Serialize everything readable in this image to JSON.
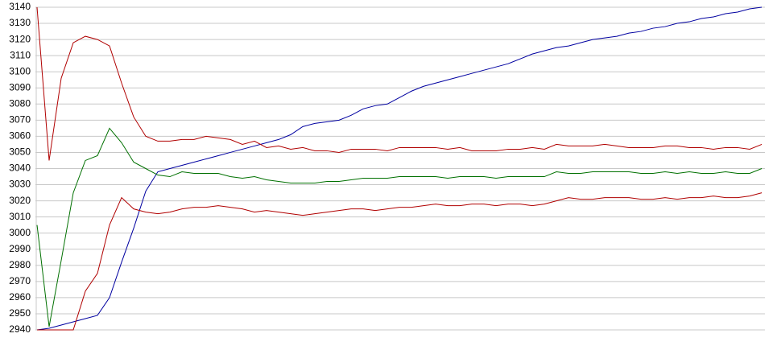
{
  "chart_data": {
    "type": "line",
    "ylim": [
      2940,
      3140
    ],
    "yticks": [
      2940,
      2950,
      2960,
      2970,
      2980,
      2990,
      3000,
      3010,
      3020,
      3030,
      3040,
      3050,
      3060,
      3070,
      3080,
      3090,
      3100,
      3110,
      3120,
      3130,
      3140
    ],
    "grid": true,
    "series": [
      {
        "color": "#0000a0",
        "values": [
          2940,
          2941,
          2943,
          2945,
          2947,
          2949,
          2960,
          2982,
          3003,
          3026,
          3038,
          3040,
          3042,
          3044,
          3046,
          3048,
          3050,
          3052,
          3054,
          3056,
          3058,
          3061,
          3066,
          3068,
          3069,
          3070,
          3073,
          3077,
          3079,
          3080,
          3084,
          3088,
          3091,
          3093,
          3095,
          3097,
          3099,
          3101,
          3103,
          3105,
          3108,
          3111,
          3113,
          3115,
          3116,
          3118,
          3120,
          3121,
          3122,
          3124,
          3125,
          3127,
          3128,
          3130,
          3131,
          3133,
          3134,
          3136,
          3137,
          3139,
          3140
        ]
      },
      {
        "color": "#b00000",
        "values": [
          3140,
          3045,
          3096,
          3118,
          3122,
          3120,
          3116,
          3093,
          3072,
          3060,
          3057,
          3057,
          3058,
          3058,
          3060,
          3059,
          3058,
          3055,
          3057,
          3053,
          3054,
          3052,
          3053,
          3051,
          3051,
          3050,
          3052,
          3052,
          3052,
          3051,
          3053,
          3053,
          3053,
          3053,
          3052,
          3053,
          3051,
          3051,
          3051,
          3052,
          3052,
          3053,
          3052,
          3055,
          3054,
          3054,
          3054,
          3055,
          3054,
          3053,
          3053,
          3053,
          3054,
          3054,
          3053,
          3053,
          3052,
          3053,
          3053,
          3052,
          3055
        ]
      },
      {
        "color": "#007000",
        "values": [
          3005,
          2942,
          2983,
          3025,
          3045,
          3048,
          3065,
          3056,
          3044,
          3040,
          3036,
          3035,
          3038,
          3037,
          3037,
          3037,
          3035,
          3034,
          3035,
          3033,
          3032,
          3031,
          3031,
          3031,
          3032,
          3032,
          3033,
          3034,
          3034,
          3034,
          3035,
          3035,
          3035,
          3035,
          3034,
          3035,
          3035,
          3035,
          3034,
          3035,
          3035,
          3035,
          3035,
          3038,
          3037,
          3037,
          3038,
          3038,
          3038,
          3038,
          3037,
          3037,
          3038,
          3037,
          3038,
          3037,
          3037,
          3038,
          3037,
          3037,
          3040
        ]
      },
      {
        "color": "#b00000",
        "values": [
          2940,
          2940,
          2940,
          2940,
          2964,
          2975,
          3005,
          3022,
          3015,
          3013,
          3012,
          3013,
          3015,
          3016,
          3016,
          3017,
          3016,
          3015,
          3013,
          3014,
          3013,
          3012,
          3011,
          3012,
          3013,
          3014,
          3015,
          3015,
          3014,
          3015,
          3016,
          3016,
          3017,
          3018,
          3017,
          3017,
          3018,
          3018,
          3017,
          3018,
          3018,
          3017,
          3018,
          3020,
          3022,
          3021,
          3021,
          3022,
          3022,
          3022,
          3021,
          3021,
          3022,
          3021,
          3022,
          3022,
          3023,
          3022,
          3022,
          3023,
          3025
        ]
      }
    ]
  }
}
